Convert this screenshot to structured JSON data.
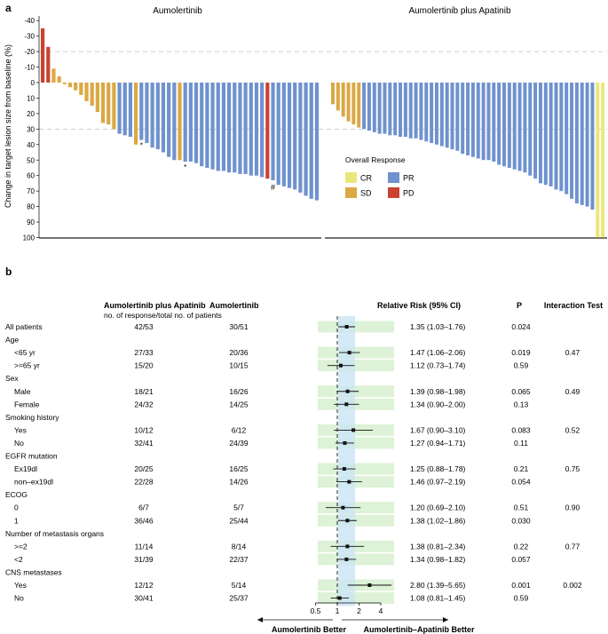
{
  "colors": {
    "CR": "#ECE67A",
    "SD": "#DBA844",
    "PD": "#C94330",
    "PR": "#6F92CE",
    "band_green": "#DDF2D6",
    "band_blue": "#CDE6F4"
  },
  "chart_data": [
    {
      "type": "bar",
      "panel_label": "a",
      "ylabel": "Change in target lesion size from baseline (%)",
      "ylim": [
        100,
        -45
      ],
      "yticks": [
        "-40",
        "-30",
        "-20",
        "-10",
        "0",
        "10",
        "20",
        "30",
        "40",
        "50",
        "60",
        "70",
        "80",
        "90",
        "100"
      ],
      "reference_lines": [
        -20,
        30
      ],
      "legend": {
        "title": "Overall Response",
        "entries": [
          "CR",
          "SD",
          "PR",
          "PD"
        ],
        "position": "right"
      },
      "groups": [
        {
          "name": "Aumolertinib",
          "responses": [
            "PD",
            "PD",
            "SD",
            "SD",
            "SD",
            "SD",
            "SD",
            "SD",
            "SD",
            "SD",
            "SD",
            "SD",
            "SD",
            "SD",
            "PR",
            "PR",
            "PR",
            "SD",
            "PR",
            "PR",
            "PR",
            "PR",
            "PR",
            "PR",
            "PR",
            "SD",
            "PR",
            "PR",
            "PR",
            "PR",
            "PR",
            "PR",
            "PR",
            "PR",
            "PR",
            "PR",
            "PR",
            "PR",
            "PR",
            "PR",
            "PR",
            "PD",
            "PR",
            "PR",
            "PR",
            "PR",
            "PR",
            "PR",
            "PR",
            "PR",
            "PR"
          ],
          "values": [
            -35,
            -23,
            -9,
            -4,
            1,
            3,
            5,
            8,
            12,
            15,
            19,
            26,
            27,
            30,
            33,
            34,
            35,
            40,
            37,
            39,
            42,
            43,
            45,
            48,
            50,
            50,
            51,
            51,
            52,
            54,
            55,
            56,
            57,
            57,
            58,
            58,
            59,
            59,
            60,
            60,
            61,
            62,
            63,
            66,
            67,
            68,
            69,
            71,
            73,
            75,
            76
          ],
          "annotations": [
            {
              "bar": 18,
              "text": "*"
            },
            {
              "bar": 26,
              "text": "*"
            },
            {
              "bar": 42,
              "text": "#"
            }
          ]
        },
        {
          "name": "Aumolertinib plus Apatinib",
          "responses": [
            "SD",
            "SD",
            "SD",
            "SD",
            "SD",
            "SD",
            "PR",
            "PR",
            "PR",
            "PR",
            "PR",
            "PR",
            "PR",
            "PR",
            "PR",
            "PR",
            "PR",
            "PR",
            "PR",
            "PR",
            "PR",
            "PR",
            "PR",
            "PR",
            "PR",
            "PR",
            "PR",
            "PR",
            "PR",
            "PR",
            "PR",
            "PR",
            "PR",
            "PR",
            "PR",
            "PR",
            "PR",
            "PR",
            "PR",
            "PR",
            "PR",
            "PR",
            "PR",
            "PR",
            "PR",
            "PR",
            "PR",
            "PR",
            "PR",
            "PR",
            "PR",
            "CR",
            "CR"
          ],
          "values": [
            14,
            18,
            22,
            25,
            27,
            29,
            30,
            31,
            32,
            33,
            33,
            34,
            34,
            35,
            35,
            36,
            36,
            37,
            38,
            39,
            40,
            41,
            42,
            43,
            44,
            46,
            47,
            48,
            49,
            50,
            50,
            51,
            53,
            54,
            55,
            56,
            57,
            58,
            60,
            62,
            65,
            66,
            67,
            69,
            70,
            72,
            75,
            78,
            79,
            80,
            82,
            100,
            100
          ]
        }
      ]
    },
    {
      "type": "table",
      "panel_label": "b",
      "headers": {
        "group1": "Aumolertinib plus Apatinib",
        "group2": "Aumolertinib",
        "subheader": "no. of response/total no. of patients",
        "rr": "Relative Risk (95% CI)",
        "p": "P",
        "interaction": "Interaction Test"
      },
      "rows": [
        {
          "label": "All patients",
          "indent": false,
          "g1": "42/53",
          "g2": "30/51",
          "rr_text": "1.35 (1.03–1.76)",
          "rr": 1.35,
          "lo": 1.03,
          "hi": 1.76,
          "p": "0.024",
          "int": ""
        },
        {
          "label": "Age",
          "indent": false,
          "header": true
        },
        {
          "label": "<65 yr",
          "indent": true,
          "g1": "27/33",
          "g2": "20/36",
          "rr_text": "1.47 (1.06–2.06)",
          "rr": 1.47,
          "lo": 1.06,
          "hi": 2.06,
          "p": "0.019",
          "int": "0.47"
        },
        {
          "label": ">=65 yr",
          "indent": true,
          "g1": "15/20",
          "g2": "10/15",
          "rr_text": "1.12 (0.73–1.74)",
          "rr": 1.12,
          "lo": 0.73,
          "hi": 1.74,
          "p": "0.59",
          "int": ""
        },
        {
          "label": "Sex",
          "indent": false,
          "header": true
        },
        {
          "label": "Male",
          "indent": true,
          "g1": "18/21",
          "g2": "16/26",
          "rr_text": "1.39 (0.98–1.98)",
          "rr": 1.39,
          "lo": 0.98,
          "hi": 1.98,
          "p": "0.065",
          "int": "0.49"
        },
        {
          "label": "Female",
          "indent": true,
          "g1": "24/32",
          "g2": "14/25",
          "rr_text": "1.34 (0.90–2.00)",
          "rr": 1.34,
          "lo": 0.9,
          "hi": 2.0,
          "p": "0.13",
          "int": ""
        },
        {
          "label": "Smoking history",
          "indent": false,
          "header": true
        },
        {
          "label": "Yes",
          "indent": true,
          "g1": "10/12",
          "g2": "6/12",
          "rr_text": "1.67 (0.90–3.10)",
          "rr": 1.67,
          "lo": 0.9,
          "hi": 3.1,
          "p": "0.083",
          "int": "0.52"
        },
        {
          "label": "No",
          "indent": true,
          "g1": "32/41",
          "g2": "24/39",
          "rr_text": "1.27 (0.94–1.71)",
          "rr": 1.27,
          "lo": 0.94,
          "hi": 1.71,
          "p": "0.11",
          "int": ""
        },
        {
          "label": "EGFR mutation",
          "indent": false,
          "header": true
        },
        {
          "label": "Ex19dl",
          "indent": true,
          "g1": "20/25",
          "g2": "16/25",
          "rr_text": "1.25 (0.88–1.78)",
          "rr": 1.25,
          "lo": 0.88,
          "hi": 1.78,
          "p": "0.21",
          "int": "0.75"
        },
        {
          "label": "non–ex19dl",
          "indent": true,
          "g1": "22/28",
          "g2": "14/26",
          "rr_text": "1.46 (0.97–2.19)",
          "rr": 1.46,
          "lo": 0.97,
          "hi": 2.19,
          "p": "0.054",
          "int": ""
        },
        {
          "label": "ECOG",
          "indent": false,
          "header": true
        },
        {
          "label": "0",
          "indent": true,
          "g1": "6/7",
          "g2": "5/7",
          "rr_text": "1.20 (0.69–2.10)",
          "rr": 1.2,
          "lo": 0.69,
          "hi": 2.1,
          "p": "0.51",
          "int": "0.90"
        },
        {
          "label": "1",
          "indent": true,
          "g1": "36/46",
          "g2": "25/44",
          "rr_text": "1.38 (1.02–1.86)",
          "rr": 1.38,
          "lo": 1.02,
          "hi": 1.86,
          "p": "0.030",
          "int": ""
        },
        {
          "label": "Number of metastasis organs",
          "indent": false,
          "header": true
        },
        {
          "label": ">=2",
          "indent": true,
          "g1": "11/14",
          "g2": "8/14",
          "rr_text": "1.38 (0.81–2.34)",
          "rr": 1.38,
          "lo": 0.81,
          "hi": 2.34,
          "p": "0.22",
          "int": "0.77"
        },
        {
          "label": "<2",
          "indent": true,
          "g1": "31/39",
          "g2": "22/37",
          "rr_text": "1.34 (0.98–1.82)",
          "rr": 1.34,
          "lo": 0.98,
          "hi": 1.82,
          "p": "0.057",
          "int": ""
        },
        {
          "label": "CNS metastases",
          "indent": false,
          "header": true
        },
        {
          "label": "Yes",
          "indent": true,
          "g1": "12/12",
          "g2": "5/14",
          "rr_text": "2.80 (1.39–5.65)",
          "rr": 2.8,
          "lo": 1.39,
          "hi": 5.65,
          "p": "0.001",
          "int": "0.002"
        },
        {
          "label": "No",
          "indent": true,
          "g1": "30/41",
          "g2": "25/37",
          "rr_text": "1.08 (0.81–1.45)",
          "rr": 1.08,
          "lo": 0.81,
          "hi": 1.45,
          "p": "0.59",
          "int": ""
        }
      ],
      "xaxis": {
        "ticks": [
          "0.5",
          "1",
          "2",
          "4"
        ],
        "tick_values": [
          0.5,
          1,
          2,
          4
        ],
        "scale": "log"
      },
      "footer": {
        "left": "Aumolertinib Better",
        "right": "Aumolertinib–Apatinib Better"
      }
    }
  ]
}
